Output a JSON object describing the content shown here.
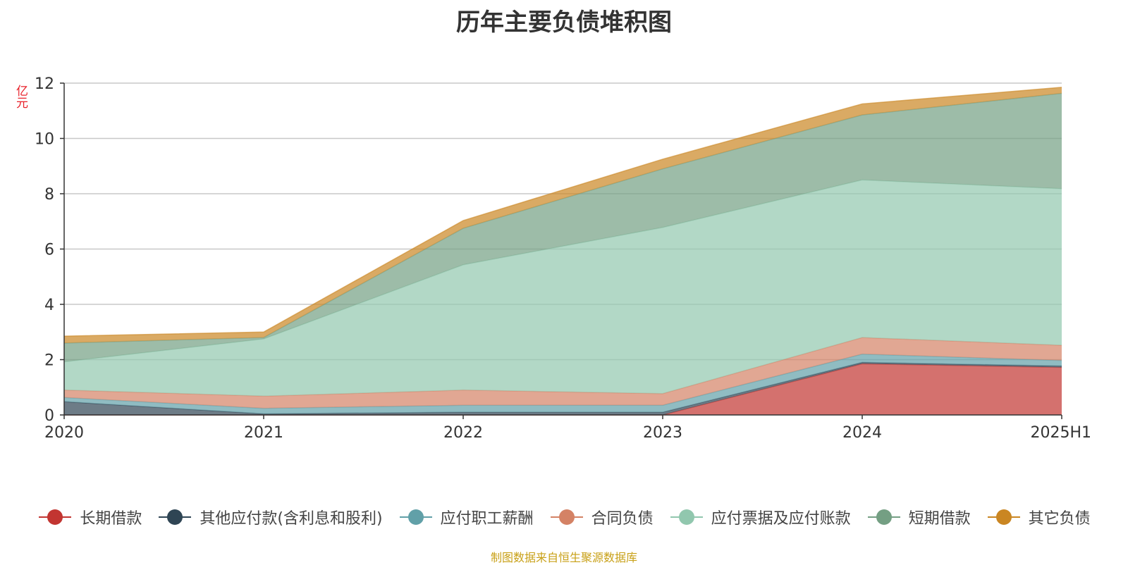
{
  "title": "历年主要负债堆积图",
  "unit_label": "亿元",
  "source_note": "制图数据来自恒生聚源数据库",
  "chart_data": {
    "type": "area",
    "stacked": true,
    "title": "历年主要负债堆积图",
    "ylabel": "亿元",
    "xlabel": "",
    "ylim": [
      0,
      12
    ],
    "yticks": [
      0,
      2,
      4,
      6,
      8,
      10,
      12
    ],
    "grid": true,
    "legend_position": "bottom",
    "categories": [
      "2020",
      "2021",
      "2022",
      "2023",
      "2024",
      "2025H1"
    ],
    "series": [
      {
        "name": "长期借款",
        "color": "#c23531",
        "values": [
          0,
          0,
          0,
          0,
          1.85,
          1.72
        ]
      },
      {
        "name": "其他应付款(含利息和股利)",
        "color": "#2f4554",
        "values": [
          0.48,
          0.04,
          0.1,
          0.1,
          0.05,
          0.05
        ]
      },
      {
        "name": "应付职工薪酬",
        "color": "#61a0a8",
        "values": [
          0.15,
          0.2,
          0.25,
          0.25,
          0.3,
          0.2
        ]
      },
      {
        "name": "合同负债",
        "color": "#d48265",
        "values": [
          0.27,
          0.44,
          0.55,
          0.42,
          0.6,
          0.55
        ]
      },
      {
        "name": "应付票据及应付账款",
        "color": "#91c7ae",
        "values": [
          1.02,
          2.07,
          4.53,
          6.01,
          5.7,
          5.66
        ]
      },
      {
        "name": "短期借款",
        "color": "#749f83",
        "values": [
          0.68,
          0.05,
          1.32,
          2.12,
          2.35,
          3.45
        ]
      },
      {
        "name": "其它负债",
        "color": "#ca8622",
        "values": [
          0.25,
          0.2,
          0.28,
          0.35,
          0.4,
          0.22
        ]
      }
    ]
  }
}
